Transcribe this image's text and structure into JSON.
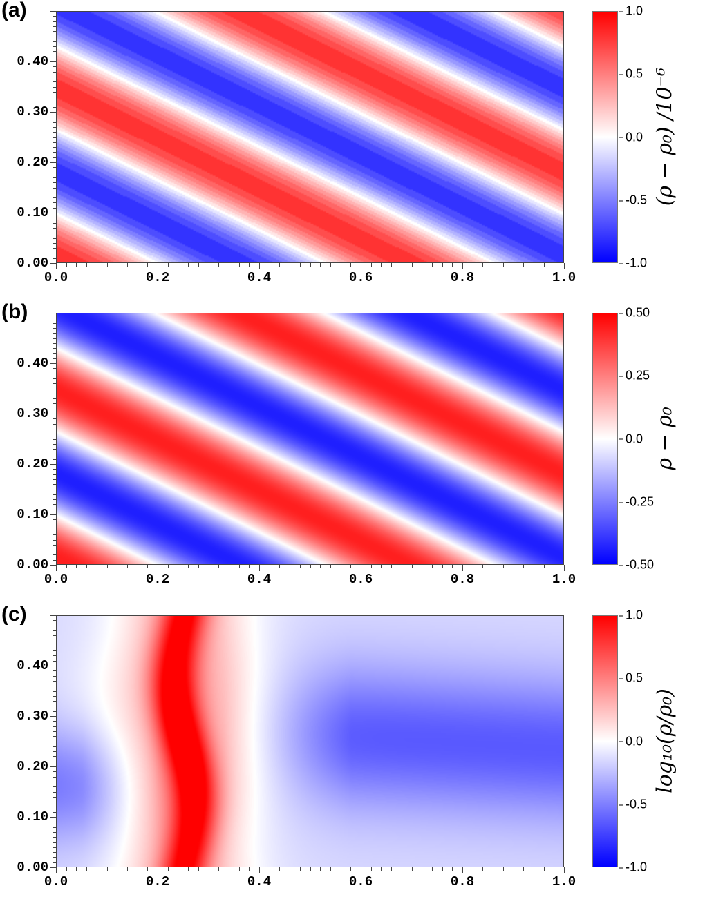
{
  "figure": {
    "panels": [
      {
        "label": "(a)",
        "colorbar": {
          "label": "(ρ − ρ₀) /10⁻⁶",
          "ticks": [
            "1.0",
            "0.5",
            "0.0",
            "-0.5",
            "-1.0"
          ],
          "min": -1.0,
          "max": 1.0
        },
        "yticks": [
          "0.40",
          "0.30",
          "0.20",
          "0.10",
          "0.00"
        ],
        "xticks": [
          "0.0",
          "0.2",
          "0.4",
          "0.6",
          "0.8",
          "1.0"
        ]
      },
      {
        "label": "(b)",
        "colorbar": {
          "label": "ρ − ρ₀",
          "ticks": [
            "0.50",
            "0.25",
            "0.0",
            "-0.25",
            "-0.50"
          ],
          "min": -0.5,
          "max": 0.5
        },
        "yticks": [
          "0.40",
          "0.30",
          "0.20",
          "0.10",
          "0.00"
        ],
        "xticks": [
          "0.0",
          "0.2",
          "0.4",
          "0.6",
          "0.8",
          "1.0"
        ]
      },
      {
        "label": "(c)",
        "colorbar": {
          "label": "log₁₀(ρ/ρ₀)",
          "ticks": [
            "1.0",
            "0.5",
            "0.0",
            "-0.5",
            "-1.0"
          ],
          "min": -1.0,
          "max": 1.0
        },
        "yticks": [
          "0.40",
          "0.30",
          "0.20",
          "0.10",
          "0.00"
        ],
        "xticks": [
          "0.0",
          "0.2",
          "0.4",
          "0.6",
          "0.8",
          "1.0"
        ]
      }
    ],
    "colors": {
      "high": "#ff0000",
      "mid": "#ffffff",
      "low": "#0000ff"
    }
  },
  "chart_data": [
    {
      "type": "heatmap",
      "title": "(a)",
      "xlabel": "",
      "ylabel": "",
      "xlim": [
        0.0,
        1.0
      ],
      "ylim": [
        0.0,
        0.5
      ],
      "colorbar_label": "(ρ − ρ₀) /10⁻⁶",
      "colorbar_range": [
        -1.0,
        1.0
      ],
      "colormap": "blue-white-red (stepped/quantized)",
      "description": "Diagonal sinusoidal bands (~1.5 wavelengths along x at y=0), constant phase along lines of slope ≈ -0.5; amplitude ~0.8 (×10⁻⁶)."
    },
    {
      "type": "heatmap",
      "title": "(b)",
      "xlabel": "",
      "ylabel": "",
      "xlim": [
        0.0,
        1.0
      ],
      "ylim": [
        0.0,
        0.5
      ],
      "colorbar_label": "ρ − ρ₀",
      "colorbar_range": [
        -0.5,
        0.5
      ],
      "colormap": "blue-white-red (smooth)",
      "description": "Same diagonal sinusoidal wave pattern as (a) with smooth shading; amplitude ~0.45."
    },
    {
      "type": "heatmap",
      "title": "(c)",
      "xlabel": "",
      "ylabel": "",
      "xlim": [
        0.0,
        1.0
      ],
      "ylim": [
        0.0,
        0.5
      ],
      "colorbar_label": "log₁₀(ρ/ρ₀)",
      "colorbar_range": [
        -1.0,
        1.0
      ],
      "colormap": "blue-white-red (smooth)",
      "description": "Narrow vertical red ridge centered near x≈0.25 (peak ~1.0 around y≈0.2–0.3), flanked by S-shaped white contours; broad light-blue depletion (~-0.5) across x≈0.5–1.0 centered near y≈0.25."
    }
  ]
}
